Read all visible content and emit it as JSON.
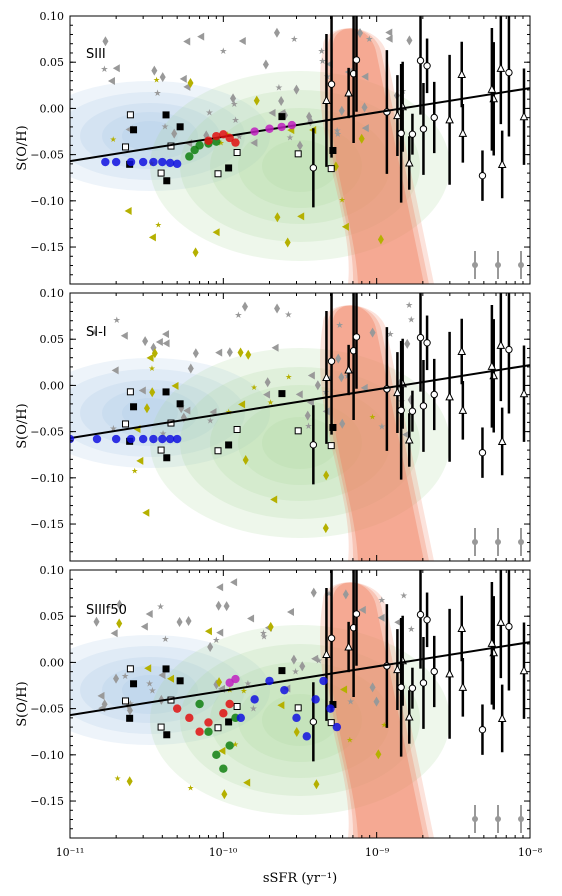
{
  "figure": {
    "xlabel": "sSFR (yr⁻¹)",
    "ylabel": "S(O/H)",
    "x_tick_labels": [
      "10⁻¹¹",
      "10⁻¹⁰",
      "10⁻⁹",
      "10⁻⁸"
    ],
    "y_tick_labels": [
      "0.10",
      "0.05",
      "0.00",
      "−0.05",
      "−0.10",
      "−0.15"
    ]
  },
  "colors": {
    "blue_contour": "#9fc3e3",
    "green_contour": "#a8d89a",
    "red_contour": "#f08060",
    "grey_points": "#999999",
    "olive_points": "#b5b000",
    "fit_line": "#000000",
    "sim_blue": "#1010e0",
    "sim_red": "#e01010",
    "sim_green": "#108010",
    "sim_magenta": "#c020c0"
  },
  "chart_data": [
    {
      "type": "scatter",
      "panel_label": "SIII",
      "xscale": "log",
      "xlim": [
        1e-11,
        1e-08
      ],
      "ylim": [
        -0.19,
        0.1
      ],
      "fit_line": {
        "x": [
          1e-11,
          1e-08
        ],
        "y": [
          -0.057,
          0.022
        ]
      },
      "series": [
        {
          "color": "blue",
          "points": [
            [
              1.7e-11,
              -0.058
            ],
            [
              2e-11,
              -0.058
            ],
            [
              2.5e-11,
              -0.058
            ],
            [
              3e-11,
              -0.058
            ],
            [
              3.5e-11,
              -0.058
            ],
            [
              4e-11,
              -0.058
            ],
            [
              4.5e-11,
              -0.059
            ],
            [
              5e-11,
              -0.06
            ]
          ]
        },
        {
          "color": "green",
          "points": [
            [
              6e-11,
              -0.052
            ],
            [
              6.5e-11,
              -0.045
            ],
            [
              7e-11,
              -0.04
            ],
            [
              8e-11,
              -0.038
            ],
            [
              9e-11,
              -0.036
            ]
          ]
        },
        {
          "color": "red",
          "points": [
            [
              8e-11,
              -0.035
            ],
            [
              9e-11,
              -0.03
            ],
            [
              1e-10,
              -0.028
            ],
            [
              1.1e-10,
              -0.032
            ],
            [
              1.2e-10,
              -0.037
            ]
          ]
        },
        {
          "color": "magenta",
          "points": [
            [
              1.6e-10,
              -0.025
            ],
            [
              2e-10,
              -0.022
            ],
            [
              2.4e-10,
              -0.02
            ],
            [
              2.8e-10,
              -0.018
            ]
          ]
        }
      ]
    },
    {
      "type": "scatter",
      "panel_label": "SI-I",
      "xscale": "log",
      "xlim": [
        1e-11,
        1e-08
      ],
      "ylim": [
        -0.19,
        0.1
      ],
      "fit_line": {
        "x": [
          1e-11,
          1e-08
        ],
        "y": [
          -0.057,
          0.022
        ]
      },
      "series": [
        {
          "color": "blue",
          "points": [
            [
              1e-11,
              -0.058
            ],
            [
              1.5e-11,
              -0.058
            ],
            [
              2e-11,
              -0.058
            ],
            [
              2.5e-11,
              -0.058
            ],
            [
              3e-11,
              -0.058
            ],
            [
              3.5e-11,
              -0.058
            ],
            [
              4e-11,
              -0.058
            ],
            [
              4.5e-11,
              -0.058
            ],
            [
              5e-11,
              -0.058
            ]
          ]
        }
      ]
    },
    {
      "type": "scatter",
      "panel_label": "SIIIf50",
      "xscale": "log",
      "xlim": [
        1e-11,
        1e-08
      ],
      "ylim": [
        -0.19,
        0.1
      ],
      "fit_line": {
        "x": [
          1e-11,
          1e-08
        ],
        "y": [
          -0.057,
          0.022
        ]
      },
      "series": [
        {
          "color": "red",
          "points": [
            [
              5e-11,
              -0.05
            ],
            [
              6e-11,
              -0.06
            ],
            [
              7e-11,
              -0.075
            ],
            [
              8e-11,
              -0.065
            ],
            [
              1e-10,
              -0.055
            ],
            [
              1.1e-10,
              -0.045
            ]
          ]
        },
        {
          "color": "green",
          "points": [
            [
              7e-11,
              -0.045
            ],
            [
              8e-11,
              -0.075
            ],
            [
              9e-11,
              -0.1
            ],
            [
              1e-10,
              -0.115
            ],
            [
              1.1e-10,
              -0.09
            ],
            [
              1.2e-10,
              -0.06
            ]
          ]
        },
        {
          "color": "blue",
          "points": [
            [
              1.3e-10,
              -0.06
            ],
            [
              1.6e-10,
              -0.04
            ],
            [
              2e-10,
              -0.02
            ],
            [
              2.5e-10,
              -0.03
            ],
            [
              3e-10,
              -0.06
            ],
            [
              3.5e-10,
              -0.08
            ],
            [
              4e-10,
              -0.04
            ],
            [
              4.5e-10,
              -0.02
            ],
            [
              5e-10,
              -0.05
            ],
            [
              5.5e-10,
              -0.07
            ]
          ]
        },
        {
          "color": "magenta",
          "points": [
            [
              1.1e-10,
              -0.022
            ],
            [
              1.2e-10,
              -0.018
            ]
          ]
        }
      ]
    }
  ]
}
